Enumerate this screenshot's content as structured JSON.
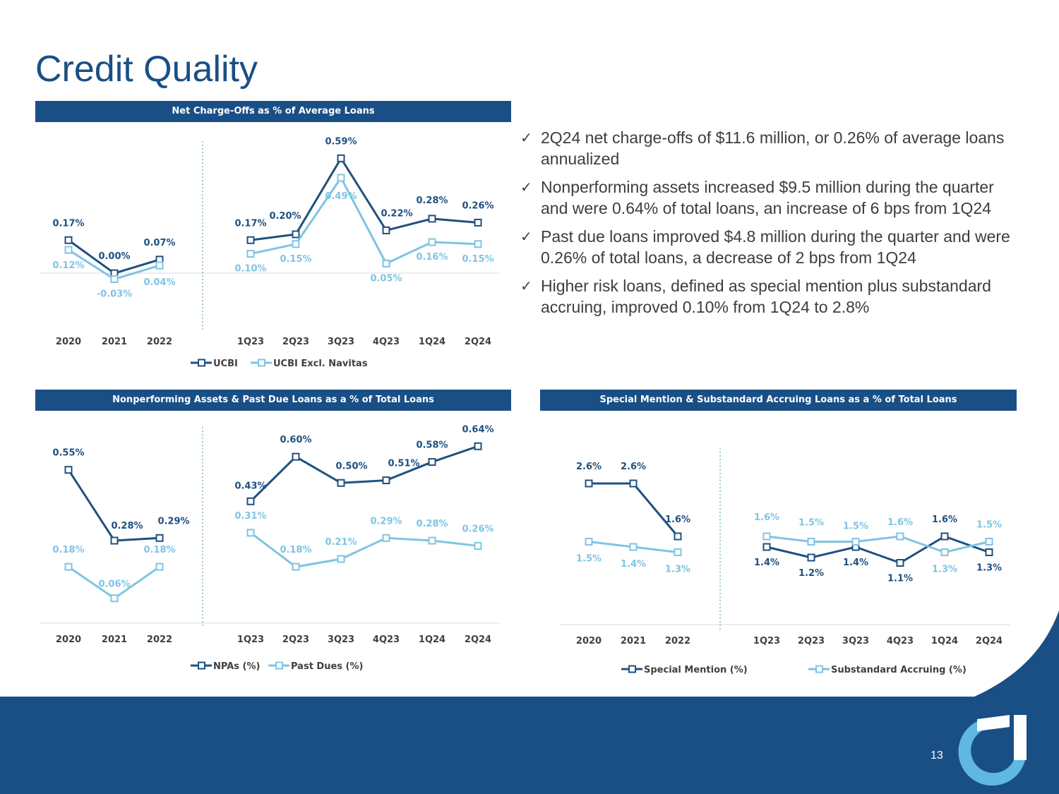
{
  "page": {
    "title": "Credit Quality",
    "page_number": "13"
  },
  "colors": {
    "brand_dark": "#1a4f86",
    "series_dark": "#1f5080",
    "series_light": "#7fc4e4",
    "text_gray": "#3d3d3d"
  },
  "bullets": [
    "2Q24 net charge-offs of $11.6 million, or 0.26% of average loans annualized",
    "Nonperforming assets increased $9.5 million during the quarter and were 0.64% of total loans, an increase of 6 bps from 1Q24",
    "Past due loans improved $4.8 million during the quarter and were 0.26% of total loans, a decrease of 2 bps from 1Q24",
    "Higher risk loans, defined as special mention plus substandard accruing, improved 0.10% from 1Q24 to 2.8%"
  ],
  "icons": {
    "bullet": "check-icon",
    "logo": "united-community-logo"
  },
  "chart_data": [
    {
      "type": "line",
      "title": "Net Charge-Offs as % of Average Loans",
      "categories": [
        "2020",
        "2021",
        "2022",
        "1Q23",
        "2Q23",
        "3Q23",
        "4Q23",
        "1Q24",
        "2Q24"
      ],
      "series": [
        {
          "name": "UCBI",
          "values": [
            0.17,
            0.0,
            0.07,
            0.17,
            0.2,
            0.59,
            0.22,
            0.28,
            0.26
          ],
          "labels": [
            "0.17%",
            "0.00%",
            "0.07%",
            "0.17%",
            "0.20%",
            "0.59%",
            "0.22%",
            "0.28%",
            "0.26%"
          ]
        },
        {
          "name": "UCBI Excl. Navitas",
          "values": [
            0.12,
            -0.03,
            0.04,
            0.1,
            0.15,
            0.49,
            0.05,
            0.16,
            0.15
          ],
          "labels": [
            "0.12%",
            "-0.03%",
            "0.04%",
            "0.10%",
            "0.15%",
            "0.49%",
            "0.05%",
            "0.16%",
            "0.15%"
          ]
        }
      ],
      "ylim": [
        -0.3,
        0.66
      ],
      "legend": "bottom",
      "grid": false
    },
    {
      "type": "line",
      "title": "Nonperforming Assets & Past Due Loans as a % of Total Loans",
      "categories": [
        "2020",
        "2021",
        "2022",
        "1Q23",
        "2Q23",
        "3Q23",
        "4Q23",
        "1Q24",
        "2Q24"
      ],
      "series": [
        {
          "name": "NPAs (%)",
          "values": [
            0.55,
            0.28,
            0.29,
            0.43,
            0.6,
            0.5,
            0.51,
            0.58,
            0.64
          ],
          "labels": [
            "0.55%",
            "0.28%",
            "0.29%",
            "0.43%",
            "0.60%",
            "0.50%",
            "0.51%",
            "0.58%",
            "0.64%"
          ]
        },
        {
          "name": "Past Dues (%)",
          "values": [
            0.18,
            0.06,
            0.18,
            0.31,
            0.18,
            0.21,
            0.29,
            0.28,
            0.26
          ],
          "labels": [
            "0.18%",
            "0.06%",
            "0.18%",
            "0.31%",
            "0.18%",
            "0.21%",
            "0.29%",
            "0.28%",
            "0.26%"
          ]
        }
      ],
      "ylim": [
        0.0,
        0.7
      ],
      "legend": "bottom",
      "grid": false
    },
    {
      "type": "line",
      "title": "Special Mention & Substandard Accruing Loans as a % of Total Loans",
      "categories": [
        "2020",
        "2021",
        "2022",
        "1Q23",
        "2Q23",
        "3Q23",
        "4Q23",
        "1Q24",
        "2Q24"
      ],
      "series": [
        {
          "name": "Special Mention (%)",
          "values": [
            2.6,
            2.6,
            1.6,
            1.4,
            1.2,
            1.4,
            1.1,
            1.6,
            1.3
          ],
          "labels": [
            "2.6%",
            "2.6%",
            "1.6%",
            "1.4%",
            "1.2%",
            "1.4%",
            "1.1%",
            "1.6%",
            "1.3%"
          ]
        },
        {
          "name": "Substandard Accruing (%)",
          "values": [
            1.5,
            1.4,
            1.3,
            1.6,
            1.5,
            1.5,
            1.6,
            1.3,
            1.5
          ],
          "labels": [
            "1.5%",
            "1.4%",
            "1.3%",
            "1.6%",
            "1.5%",
            "1.5%",
            "1.6%",
            "1.3%",
            "1.5%"
          ]
        }
      ],
      "ylim": [
        0.0,
        3.2
      ],
      "legend": "bottom",
      "grid": false
    }
  ]
}
